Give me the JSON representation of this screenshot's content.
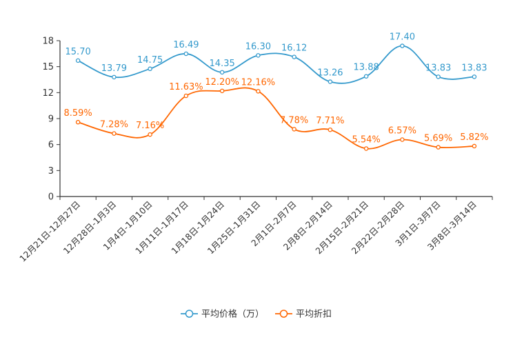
{
  "chart_data": {
    "type": "line",
    "title": "",
    "xlabel": "",
    "ylabel": "",
    "ylim": [
      0,
      18
    ],
    "yticks": [
      "0",
      "3",
      "6",
      "9",
      "12",
      "15",
      "18"
    ],
    "categories": [
      "12月21日-12月27日",
      "12月28日-1月3日",
      "1月4日-1月10日",
      "1月11日-1月17日",
      "1月18日-1月24日",
      "1月25日-1月31日",
      "2月1日-2月7日",
      "2月8日-2月14日",
      "2月15日-2月21日",
      "2月22日-2月28日",
      "3月1日-3月7日",
      "3月8日-3月14日"
    ],
    "series": [
      {
        "name": "平均价格（万）",
        "color": "#3399cc",
        "values": [
          15.7,
          13.79,
          14.75,
          16.49,
          14.35,
          16.3,
          16.12,
          13.26,
          13.88,
          17.4,
          13.83,
          13.83
        ],
        "labels": [
          "15.70",
          "13.79",
          "14.75",
          "16.49",
          "14.35",
          "16.30",
          "16.12",
          "13.26",
          "13.88",
          "17.40",
          "13.83",
          "13.83"
        ]
      },
      {
        "name": "平均折扣",
        "color": "#ff6600",
        "values": [
          8.59,
          7.28,
          7.16,
          11.63,
          12.2,
          12.16,
          7.78,
          7.71,
          5.54,
          6.57,
          5.69,
          5.82
        ],
        "labels": [
          "8.59%",
          "7.28%",
          "7.16%",
          "11.63%",
          "12.20%",
          "12.16%",
          "7.78%",
          "7.71%",
          "5.54%",
          "6.57%",
          "5.69%",
          "5.82%"
        ]
      }
    ],
    "legend_position": "bottom-center",
    "grid": false
  }
}
